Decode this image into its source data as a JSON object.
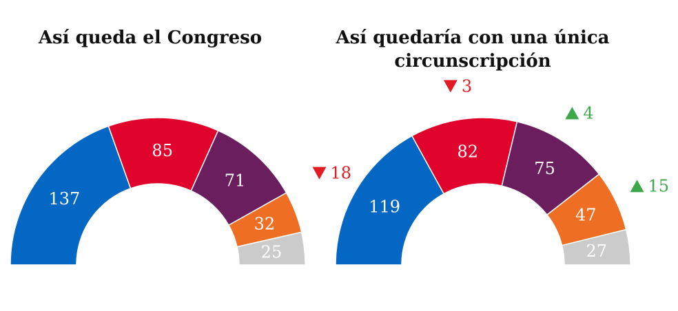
{
  "colors": {
    "blue": "#0467c4",
    "red": "#e0032b",
    "purple": "#6a1e5e",
    "orange": "#ee6f23",
    "grey": "#cbcbcb",
    "down": "#e31b23",
    "up": "#3da84a"
  },
  "chart_data": [
    {
      "type": "pie",
      "subtype": "half-donut",
      "title": "Así queda el Congreso",
      "values": [
        137,
        85,
        71,
        32,
        25
      ],
      "labels": [
        "137",
        "85",
        "71",
        "32",
        "25"
      ],
      "colors": [
        "#0467c4",
        "#e0032b",
        "#6a1e5e",
        "#ee6f23",
        "#cbcbcb"
      ]
    },
    {
      "type": "pie",
      "subtype": "half-donut",
      "title": "Así quedaría con una única circunscripción",
      "title_lines": [
        "Así quedaría con una única",
        "circunscripción"
      ],
      "values": [
        119,
        82,
        75,
        47,
        27
      ],
      "labels": [
        "119",
        "82",
        "75",
        "47",
        "27"
      ],
      "colors": [
        "#0467c4",
        "#e0032b",
        "#6a1e5e",
        "#ee6f23",
        "#cbcbcb"
      ],
      "changes": [
        {
          "direction": "down",
          "value": 18,
          "label": "18",
          "icon": "triangle-down-icon"
        },
        {
          "direction": "down",
          "value": 3,
          "label": "3",
          "icon": "triangle-down-icon"
        },
        {
          "direction": "up",
          "value": 4,
          "label": "4",
          "icon": "triangle-up-icon"
        },
        {
          "direction": "up",
          "value": 15,
          "label": "15",
          "icon": "triangle-up-icon"
        }
      ]
    }
  ]
}
